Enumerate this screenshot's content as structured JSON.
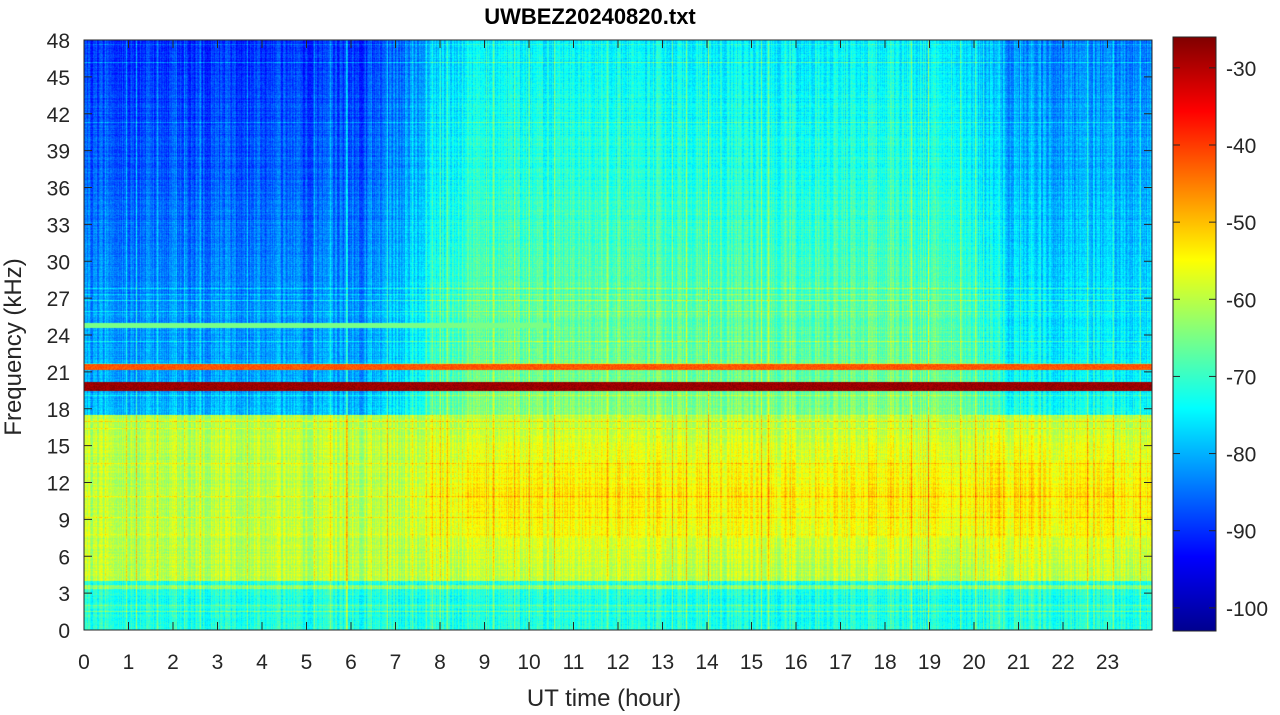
{
  "chart_data": {
    "type": "heatmap",
    "title": "UWBEZ20240820.txt",
    "xlabel": "UT time (hour)",
    "ylabel": "Frequency (kHz)",
    "x_range": [
      0,
      24
    ],
    "y_range": [
      0,
      48
    ],
    "x_ticks": [
      "0",
      "1",
      "2",
      "3",
      "4",
      "5",
      "6",
      "7",
      "8",
      "9",
      "10",
      "11",
      "12",
      "13",
      "14",
      "15",
      "16",
      "17",
      "18",
      "19",
      "20",
      "21",
      "22",
      "23"
    ],
    "y_ticks": [
      "0",
      "3",
      "6",
      "9",
      "12",
      "15",
      "18",
      "21",
      "24",
      "27",
      "30",
      "33",
      "36",
      "39",
      "42",
      "45",
      "48"
    ],
    "colorbar": {
      "range": [
        -103,
        -26
      ],
      "ticks": [
        "-30",
        "-40",
        "-50",
        "-60",
        "-70",
        "-80",
        "-90",
        "-100"
      ],
      "colormap": "jet"
    },
    "colormap_colors": [
      "#00008f",
      "#0000ff",
      "#00ffff",
      "#ffff00",
      "#ff0000",
      "#800000"
    ],
    "approximate_levels_dB": {
      "background_high_freq_early": -90,
      "background_high_freq_late": -75,
      "background_mid_freq": -72,
      "low_freq_band_0_to_17kHz_day": -55,
      "peak_noise_band_8_to_15kHz": -48,
      "narrowband_line_19_8kHz": -28,
      "narrowband_line_21_4kHz": -42,
      "narrowband_line_24_8kHz": -65
    }
  }
}
